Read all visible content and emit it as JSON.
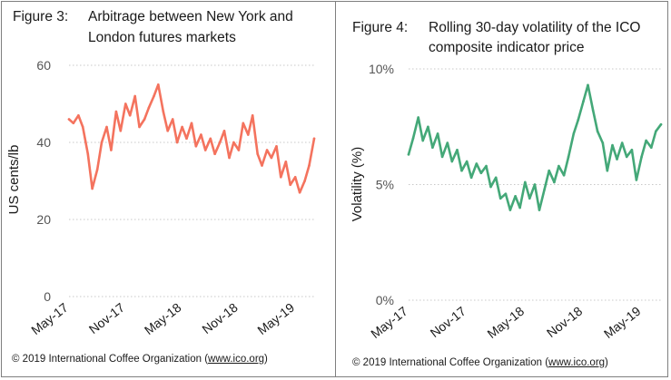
{
  "figures": [
    {
      "label": "Figure 3:",
      "title_lines": [
        "Arbitrage between New York and",
        "London futures markets"
      ],
      "copyright_prefix": "© 2019 International Coffee Organization (",
      "copyright_url": "www.ico.org",
      "copyright_suffix": ")"
    },
    {
      "label": "Figure 4:",
      "title_lines": [
        "Rolling 30-day volatility of the ICO",
        "composite indicator price"
      ],
      "copyright_prefix": "© 2019 International Coffee Organization (",
      "copyright_url": "www.ico.org",
      "copyright_suffix": ")"
    }
  ],
  "chart_data": [
    {
      "type": "line",
      "title": "Arbitrage between New York and London futures markets",
      "xlabel": "",
      "ylabel": "US cents/lb",
      "ylim": [
        0,
        60
      ],
      "yticks": [
        "0",
        "20",
        "40",
        "60"
      ],
      "xticks": [
        "May-17",
        "Nov-17",
        "May-18",
        "Nov-18",
        "May-19"
      ],
      "xlim": [
        "2017-05",
        "2019-07"
      ],
      "grid": "horizontal dotted",
      "color": "#f4735e",
      "series": [
        {
          "name": "",
          "x": [
            "2017-05-01",
            "2017-05-15",
            "2017-06-01",
            "2017-06-15",
            "2017-07-01",
            "2017-07-15",
            "2017-08-01",
            "2017-08-15",
            "2017-09-01",
            "2017-09-15",
            "2017-10-01",
            "2017-10-15",
            "2017-11-01",
            "2017-11-15",
            "2017-12-01",
            "2017-12-15",
            "2018-01-01",
            "2018-01-15",
            "2018-02-01",
            "2018-02-15",
            "2018-03-01",
            "2018-03-15",
            "2018-04-01",
            "2018-04-15",
            "2018-05-01",
            "2018-05-15",
            "2018-06-01",
            "2018-06-15",
            "2018-07-01",
            "2018-07-15",
            "2018-08-01",
            "2018-08-15",
            "2018-09-01",
            "2018-09-15",
            "2018-10-01",
            "2018-10-15",
            "2018-11-01",
            "2018-11-15",
            "2018-12-01",
            "2018-12-15",
            "2019-01-01",
            "2019-01-15",
            "2019-02-01",
            "2019-02-15",
            "2019-03-01",
            "2019-03-15",
            "2019-04-01",
            "2019-04-15",
            "2019-05-01",
            "2019-05-15",
            "2019-06-01",
            "2019-06-15",
            "2019-07-01"
          ],
          "values": [
            46,
            45,
            47,
            44,
            37,
            28,
            33,
            40,
            44,
            38,
            48,
            43,
            50,
            47,
            52,
            44,
            46,
            49,
            52,
            55,
            48,
            43,
            46,
            40,
            44,
            41,
            45,
            39,
            42,
            38,
            41,
            37,
            40,
            43,
            36,
            40,
            38,
            45,
            42,
            47,
            37,
            34,
            38,
            36,
            39,
            31,
            35,
            29,
            31,
            27,
            30,
            34,
            41
          ]
        }
      ]
    },
    {
      "type": "line",
      "title": "Rolling 30-day volatility of the ICO composite indicator price",
      "xlabel": "",
      "ylabel": "Volatility (%)",
      "ylim": [
        0,
        10
      ],
      "yticks": [
        "0%",
        "5%",
        "10%"
      ],
      "xticks": [
        "May-17",
        "Nov-17",
        "May-18",
        "Nov-18",
        "May-19"
      ],
      "xlim": [
        "2017-05",
        "2019-07"
      ],
      "grid": "horizontal dotted",
      "color": "#44a878",
      "series": [
        {
          "name": "",
          "x": [
            "2017-05-01",
            "2017-05-15",
            "2017-06-01",
            "2017-06-15",
            "2017-07-01",
            "2017-07-15",
            "2017-08-01",
            "2017-08-15",
            "2017-09-01",
            "2017-09-15",
            "2017-10-01",
            "2017-10-15",
            "2017-11-01",
            "2017-11-15",
            "2017-12-01",
            "2017-12-15",
            "2018-01-01",
            "2018-01-15",
            "2018-02-01",
            "2018-02-15",
            "2018-03-01",
            "2018-03-15",
            "2018-04-01",
            "2018-04-15",
            "2018-05-01",
            "2018-05-15",
            "2018-06-01",
            "2018-06-15",
            "2018-07-01",
            "2018-07-15",
            "2018-08-01",
            "2018-08-15",
            "2018-09-01",
            "2018-09-15",
            "2018-10-01",
            "2018-10-15",
            "2018-11-01",
            "2018-11-15",
            "2018-12-01",
            "2018-12-15",
            "2019-01-01",
            "2019-01-15",
            "2019-02-01",
            "2019-02-15",
            "2019-03-01",
            "2019-03-15",
            "2019-04-01",
            "2019-04-15",
            "2019-05-01",
            "2019-05-15",
            "2019-06-01",
            "2019-06-15",
            "2019-07-01"
          ],
          "values": [
            6.3,
            7.0,
            7.9,
            6.9,
            7.5,
            6.6,
            7.2,
            6.2,
            6.8,
            6.0,
            6.5,
            5.6,
            6.0,
            5.3,
            5.9,
            5.5,
            5.8,
            4.9,
            5.3,
            4.4,
            4.6,
            3.9,
            4.5,
            4.0,
            5.1,
            4.4,
            5.0,
            3.9,
            4.8,
            5.6,
            5.1,
            5.8,
            5.4,
            6.2,
            7.2,
            7.8,
            8.6,
            9.3,
            8.2,
            7.3,
            6.8,
            5.6,
            6.7,
            6.1,
            6.8,
            6.2,
            6.5,
            5.2,
            6.2,
            6.9,
            6.6,
            7.3,
            7.6
          ]
        }
      ]
    }
  ]
}
